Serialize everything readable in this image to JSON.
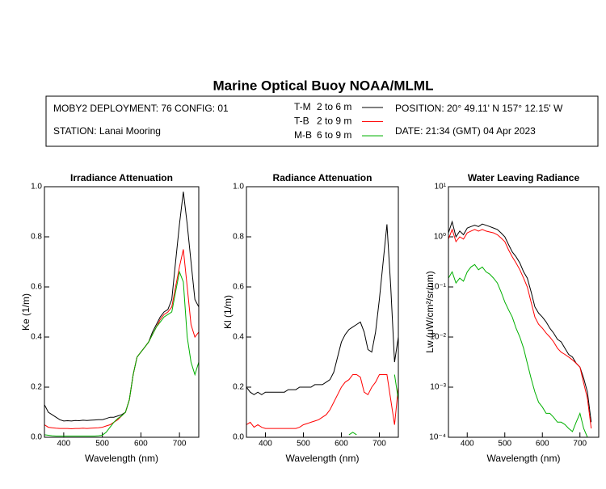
{
  "title": "Marine Optical Buoy NOAA/MLML",
  "info": {
    "deployment": "MOBY2 DEPLOYMENT: 76 CONFIG: 01",
    "station": "STATION: Lanai Mooring",
    "position": "POSITION: 20° 49.11' N   157° 12.15' W",
    "date": "DATE: 21:34 (GMT) 04 Apr 2023"
  },
  "legend": [
    {
      "name": "T-M",
      "range": "2 to 6  m",
      "color": "#000000"
    },
    {
      "name": "T-B",
      "range": "2 to 9  m",
      "color": "#ff0000"
    },
    {
      "name": "M-B",
      "range": "6 to 9  m",
      "color": "#00b000"
    }
  ],
  "chart_data": [
    {
      "type": "line",
      "title": "Irradiance Attenuation",
      "xlabel": "Wavelength (nm)",
      "ylabel": "Ke  (1/m)",
      "xlim": [
        350,
        750
      ],
      "xticks": [
        400,
        500,
        600,
        700
      ],
      "ylim": [
        0,
        1
      ],
      "yticks": [
        {
          "value": 0,
          "label": "0.0"
        },
        0.2,
        0.4,
        0.6,
        0.8,
        {
          "value": 1,
          "label": "1.0"
        }
      ],
      "x": [
        350,
        360,
        370,
        380,
        390,
        400,
        410,
        420,
        430,
        440,
        450,
        460,
        470,
        480,
        490,
        500,
        510,
        520,
        530,
        540,
        550,
        560,
        570,
        580,
        590,
        600,
        610,
        620,
        630,
        640,
        650,
        660,
        670,
        680,
        690,
        700,
        710,
        720,
        730,
        740,
        750
      ],
      "series": [
        {
          "color": "#000000",
          "values": [
            0.13,
            0.1,
            0.09,
            0.08,
            0.07,
            0.065,
            0.066,
            0.065,
            0.067,
            0.066,
            0.068,
            0.067,
            0.068,
            0.069,
            0.07,
            0.07,
            0.075,
            0.08,
            0.08,
            0.085,
            0.09,
            0.1,
            0.15,
            0.25,
            0.32,
            0.34,
            0.36,
            0.38,
            0.42,
            0.45,
            0.48,
            0.5,
            0.51,
            0.55,
            0.7,
            0.85,
            0.98,
            0.85,
            0.7,
            0.55,
            0.52
          ]
        },
        {
          "color": "#ff0000",
          "values": [
            0.05,
            0.04,
            0.038,
            0.036,
            0.035,
            0.035,
            0.035,
            0.034,
            0.035,
            0.035,
            0.036,
            0.035,
            0.036,
            0.037,
            0.038,
            0.04,
            0.045,
            0.05,
            0.06,
            0.07,
            0.085,
            0.1,
            0.15,
            0.25,
            0.32,
            0.34,
            0.36,
            0.38,
            0.41,
            0.44,
            0.47,
            0.49,
            0.5,
            0.52,
            0.6,
            0.68,
            0.75,
            0.6,
            0.45,
            0.4,
            0.42
          ]
        },
        {
          "color": "#00b000",
          "values": [
            0.01,
            0.008,
            0.006,
            0.005,
            0.005,
            0.005,
            0.005,
            0.005,
            0.005,
            0.005,
            0.005,
            0.005,
            0.005,
            0.005,
            0.006,
            0.008,
            0.02,
            0.04,
            0.06,
            0.075,
            0.085,
            0.1,
            0.15,
            0.25,
            0.32,
            0.34,
            0.36,
            0.38,
            0.41,
            0.44,
            0.46,
            0.48,
            0.49,
            0.5,
            0.58,
            0.66,
            0.62,
            0.4,
            0.3,
            0.25,
            0.3
          ]
        }
      ]
    },
    {
      "type": "line",
      "title": "Radiance Attenuation",
      "xlabel": "Wavelength (nm)",
      "ylabel": "Kl  (1/m)",
      "xlim": [
        350,
        750
      ],
      "xticks": [
        400,
        500,
        600,
        700
      ],
      "ylim": [
        0,
        1
      ],
      "yticks": [
        {
          "value": 0,
          "label": "0.0"
        },
        0.2,
        0.4,
        0.6,
        0.8,
        {
          "value": 1,
          "label": "1.0"
        }
      ],
      "x": [
        350,
        360,
        370,
        380,
        390,
        400,
        410,
        420,
        430,
        440,
        450,
        460,
        470,
        480,
        490,
        500,
        510,
        520,
        530,
        540,
        550,
        560,
        570,
        580,
        590,
        600,
        610,
        620,
        630,
        640,
        650,
        660,
        670,
        680,
        690,
        700,
        710,
        720,
        730,
        740,
        750
      ],
      "series": [
        {
          "color": "#000000",
          "values": [
            0.2,
            0.18,
            0.17,
            0.18,
            0.17,
            0.18,
            0.18,
            0.18,
            0.18,
            0.18,
            0.18,
            0.19,
            0.19,
            0.19,
            0.2,
            0.2,
            0.2,
            0.2,
            0.21,
            0.21,
            0.21,
            0.22,
            0.23,
            0.26,
            0.32,
            0.38,
            0.41,
            0.43,
            0.44,
            0.45,
            0.46,
            0.42,
            0.35,
            0.34,
            0.42,
            0.55,
            0.7,
            0.85,
            0.6,
            0.3,
            0.4
          ]
        },
        {
          "color": "#ff0000",
          "values": [
            0.05,
            0.06,
            0.04,
            0.05,
            0.04,
            0.035,
            0.035,
            0.035,
            0.035,
            0.035,
            0.035,
            0.035,
            0.035,
            0.035,
            0.04,
            0.05,
            0.055,
            0.06,
            0.065,
            0.07,
            0.08,
            0.09,
            0.11,
            0.14,
            0.17,
            0.2,
            0.22,
            0.23,
            0.25,
            0.25,
            0.24,
            0.18,
            0.17,
            0.2,
            0.22,
            0.25,
            0.25,
            0.25,
            0.15,
            0.05,
            0.2
          ]
        },
        {
          "color": "#00b000",
          "values": [
            null,
            null,
            null,
            null,
            null,
            null,
            null,
            null,
            null,
            null,
            null,
            null,
            null,
            null,
            null,
            null,
            null,
            null,
            null,
            null,
            null,
            null,
            null,
            null,
            null,
            null,
            null,
            0.01,
            0.02,
            0.01,
            null,
            null,
            null,
            null,
            null,
            null,
            null,
            null,
            null,
            0.25,
            0.15
          ]
        }
      ]
    },
    {
      "type": "line",
      "title": "Water Leaving Radiance",
      "xlabel": "Wavelength (nm)",
      "ylabel": "Lw  (μW/cm²/sr/nm)",
      "xlim": [
        350,
        750
      ],
      "xticks": [
        400,
        500,
        600,
        700
      ],
      "log": true,
      "ylim": [
        0.0001,
        10
      ],
      "yticks": [
        {
          "value": 10,
          "label": "10¹"
        },
        {
          "value": 1,
          "label": "10⁰"
        },
        {
          "value": 0.1,
          "label": "10⁻¹"
        },
        {
          "value": 0.01,
          "label": "10⁻²"
        },
        {
          "value": 0.001,
          "label": "10⁻³"
        },
        {
          "value": 0.0001,
          "label": "10⁻⁴"
        }
      ],
      "x": [
        350,
        360,
        370,
        380,
        390,
        400,
        410,
        420,
        430,
        440,
        450,
        460,
        470,
        480,
        490,
        500,
        510,
        520,
        530,
        540,
        550,
        560,
        570,
        580,
        590,
        600,
        610,
        620,
        630,
        640,
        650,
        660,
        670,
        680,
        690,
        700,
        710,
        720,
        730,
        740,
        750
      ],
      "series": [
        {
          "color": "#000000",
          "values": [
            1.2,
            2,
            1.0,
            1.3,
            1.1,
            1.5,
            1.6,
            1.7,
            1.6,
            1.8,
            1.7,
            1.6,
            1.5,
            1.4,
            1.2,
            1.0,
            0.7,
            0.5,
            0.4,
            0.3,
            0.2,
            0.15,
            0.08,
            0.04,
            0.03,
            0.025,
            0.02,
            0.015,
            0.012,
            0.009,
            0.008,
            0.006,
            0.0045,
            0.004,
            0.003,
            0.0025,
            0.0015,
            0.0008,
            0.0002,
            null,
            null
          ]
        },
        {
          "color": "#ff0000",
          "values": [
            0.9,
            1.4,
            0.8,
            1.0,
            0.9,
            1.2,
            1.3,
            1.4,
            1.3,
            1.4,
            1.3,
            1.25,
            1.2,
            1.1,
            0.95,
            0.8,
            0.55,
            0.4,
            0.3,
            0.22,
            0.15,
            0.1,
            0.05,
            0.025,
            0.018,
            0.015,
            0.012,
            0.01,
            0.008,
            0.006,
            0.005,
            0.0045,
            0.004,
            0.0035,
            0.003,
            0.0025,
            0.0012,
            0.0006,
            0.00015,
            null,
            null
          ]
        },
        {
          "color": "#00b000",
          "values": [
            0.15,
            0.2,
            0.12,
            0.15,
            0.13,
            0.2,
            0.25,
            0.28,
            0.22,
            0.25,
            0.2,
            0.18,
            0.15,
            0.12,
            0.08,
            0.05,
            0.035,
            0.025,
            0.015,
            0.01,
            0.006,
            0.003,
            0.0015,
            0.0008,
            0.0005,
            0.0004,
            0.0003,
            0.0003,
            0.00025,
            0.0002,
            0.0002,
            0.00018,
            0.00015,
            0.00013,
            0.0002,
            0.0003,
            0.00015,
            0.0001,
            null,
            null,
            null
          ]
        }
      ]
    }
  ]
}
